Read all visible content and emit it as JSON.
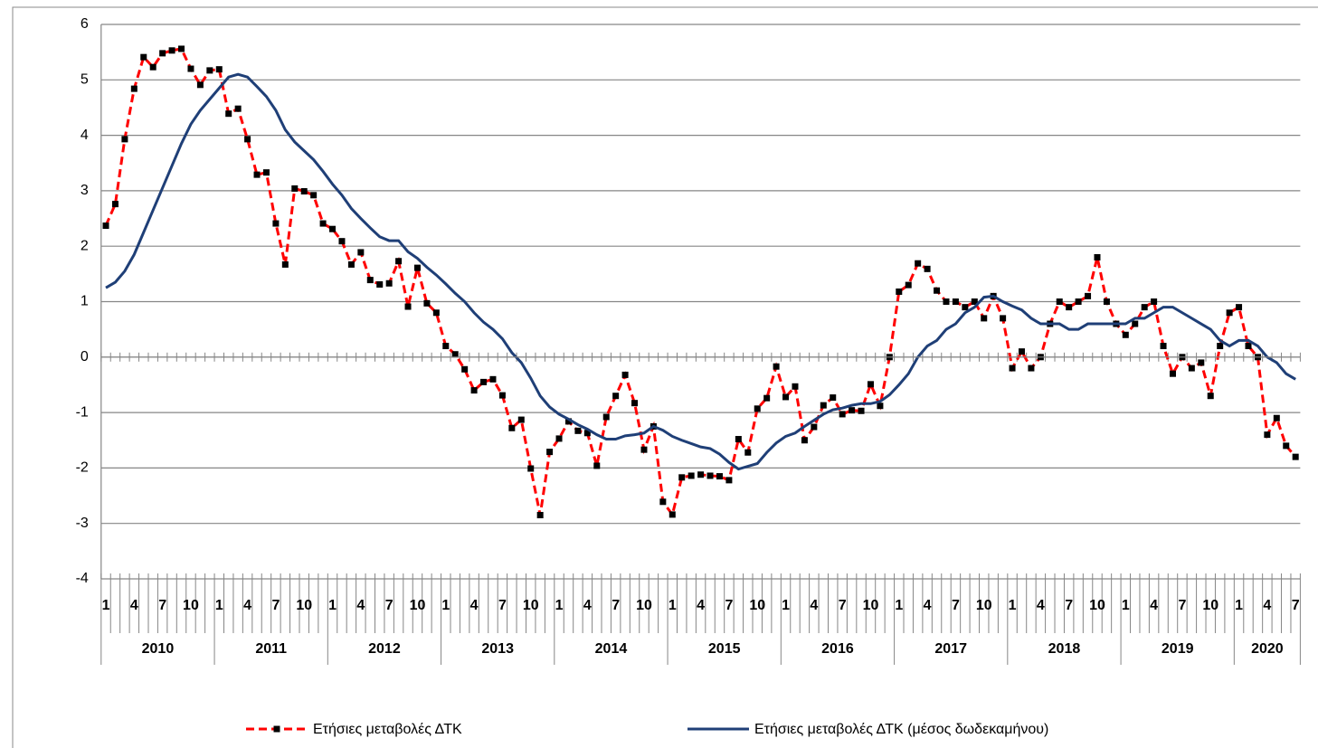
{
  "chart_data": {
    "type": "line",
    "categories": [
      "1",
      null,
      null,
      "4",
      null,
      null,
      "7",
      null,
      null,
      "10",
      null,
      null,
      "1",
      null,
      null,
      "4",
      null,
      null,
      "7",
      null,
      null,
      "10",
      null,
      null,
      "1",
      null,
      null,
      "4",
      null,
      null,
      "7",
      null,
      null,
      "10",
      null,
      null,
      "1",
      null,
      null,
      "4",
      null,
      null,
      "7",
      null,
      null,
      "10",
      null,
      null,
      "1",
      null,
      null,
      "4",
      null,
      null,
      "7",
      null,
      null,
      "10",
      null,
      null,
      "1",
      null,
      null,
      "4",
      null,
      null,
      "7",
      null,
      null,
      "10",
      null,
      null,
      "1",
      null,
      null,
      "4",
      null,
      null,
      "7",
      null,
      null,
      "10",
      null,
      null,
      "1",
      null,
      null,
      "4",
      null,
      null,
      "7",
      null,
      null,
      "10",
      null,
      null,
      "1",
      null,
      null,
      "4",
      null,
      null,
      "7",
      null,
      null,
      "10",
      null,
      null,
      "1",
      null,
      null,
      "4",
      null,
      null,
      "7",
      null,
      null,
      "10",
      null,
      null,
      "1",
      null,
      null,
      "4",
      null,
      null,
      "7"
    ],
    "years": [
      "2010",
      "2011",
      "2012",
      "2013",
      "2014",
      "2015",
      "2016",
      "2017",
      "2018",
      "2019",
      "2020"
    ],
    "series": [
      {
        "name": "Ετήσιες μεταβολές ΔΤΚ",
        "color": "#ff0000",
        "marker_color": "#000000",
        "dashed": true,
        "values": [
          2.37,
          2.76,
          3.93,
          4.84,
          5.41,
          5.23,
          5.48,
          5.53,
          5.56,
          5.2,
          4.91,
          5.17,
          5.19,
          4.39,
          4.48,
          3.93,
          3.29,
          3.33,
          2.41,
          1.67,
          3.04,
          2.99,
          2.92,
          2.41,
          2.31,
          2.09,
          1.67,
          1.89,
          1.39,
          1.31,
          1.33,
          1.73,
          0.91,
          1.61,
          0.97,
          0.8,
          0.2,
          0.05,
          -0.22,
          -0.6,
          -0.45,
          -0.4,
          -0.69,
          -1.28,
          -1.13,
          -2.01,
          -2.85,
          -1.71,
          -1.47,
          -1.16,
          -1.33,
          -1.37,
          -1.96,
          -1.08,
          -0.7,
          -0.32,
          -0.83,
          -1.67,
          -1.25,
          -2.61,
          -2.84,
          -2.17,
          -2.14,
          -2.12,
          -2.14,
          -2.15,
          -2.22,
          -1.48,
          -1.72,
          -0.93,
          -0.74,
          -0.17,
          -0.72,
          -0.53,
          -1.5,
          -1.26,
          -0.87,
          -0.73,
          -1.03,
          -0.96,
          -0.97,
          -0.49,
          -0.88,
          0.0,
          1.18,
          1.3,
          1.69,
          1.59,
          1.2,
          1.0,
          1.0,
          0.9,
          1.0,
          0.7,
          1.1,
          0.7,
          -0.2,
          0.1,
          -0.2,
          0.0,
          0.6,
          1.0,
          0.9,
          1.0,
          1.1,
          1.8,
          1.0,
          0.6,
          0.4,
          0.6,
          0.9,
          1.0,
          0.2,
          -0.3,
          0.0,
          -0.2,
          -0.1,
          -0.7,
          0.2,
          0.8,
          0.9,
          0.2,
          0.0,
          -1.4,
          -1.1,
          -1.6,
          -1.8
        ]
      },
      {
        "name": "Ετήσιες μεταβολές ΔΤΚ (μέσος δωδεκαμήνου)",
        "color": "#1f3f77",
        "dashed": false,
        "values": [
          1.25,
          1.35,
          1.55,
          1.85,
          2.25,
          2.65,
          3.05,
          3.45,
          3.85,
          4.2,
          4.45,
          4.65,
          4.85,
          5.05,
          5.1,
          5.05,
          4.88,
          4.7,
          4.45,
          4.1,
          3.88,
          3.72,
          3.56,
          3.35,
          3.12,
          2.92,
          2.68,
          2.5,
          2.33,
          2.17,
          2.1,
          2.1,
          1.9,
          1.78,
          1.62,
          1.48,
          1.32,
          1.15,
          1.0,
          0.8,
          0.63,
          0.5,
          0.33,
          0.08,
          -0.1,
          -0.38,
          -0.7,
          -0.9,
          -1.03,
          -1.12,
          -1.22,
          -1.3,
          -1.4,
          -1.48,
          -1.48,
          -1.42,
          -1.4,
          -1.37,
          -1.25,
          -1.32,
          -1.43,
          -1.5,
          -1.56,
          -1.62,
          -1.65,
          -1.75,
          -1.9,
          -2.02,
          -1.97,
          -1.92,
          -1.72,
          -1.55,
          -1.43,
          -1.37,
          -1.25,
          -1.14,
          -1.03,
          -0.95,
          -0.92,
          -0.87,
          -0.84,
          -0.84,
          -0.8,
          -0.68,
          -0.5,
          -0.3,
          0.0,
          0.2,
          0.3,
          0.5,
          0.6,
          0.8,
          0.9,
          1.08,
          1.1,
          1.0,
          0.92,
          0.85,
          0.7,
          0.6,
          0.6,
          0.6,
          0.5,
          0.5,
          0.6,
          0.6,
          0.6,
          0.6,
          0.6,
          0.7,
          0.7,
          0.8,
          0.9,
          0.9,
          0.8,
          0.7,
          0.6,
          0.5,
          0.3,
          0.2,
          0.3,
          0.3,
          0.2,
          0.0,
          -0.1,
          -0.3,
          -0.4
        ]
      }
    ],
    "ylim": [
      -4,
      6
    ],
    "yticks": [
      -4,
      -3,
      -2,
      -1,
      0,
      1,
      2,
      3,
      4,
      5,
      6
    ],
    "grid": true
  }
}
